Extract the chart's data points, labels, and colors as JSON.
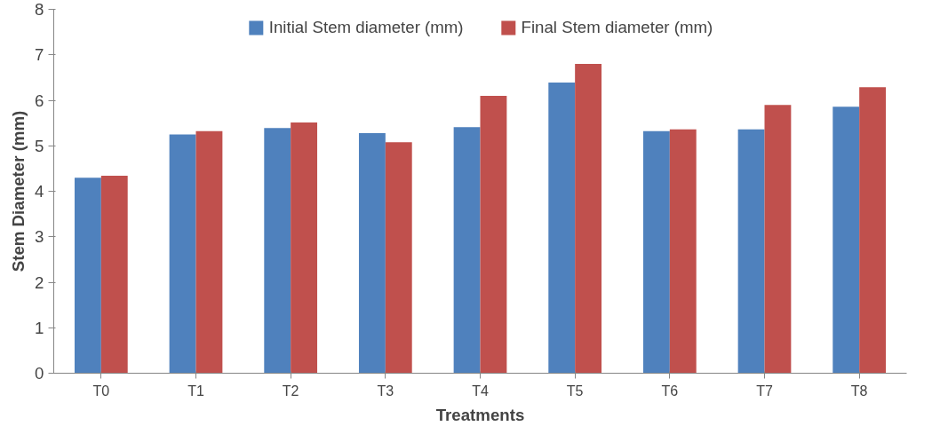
{
  "chart_data": {
    "type": "bar",
    "categories": [
      "T0",
      "T1",
      "T2",
      "T3",
      "T4",
      "T5",
      "T6",
      "T7",
      "T8"
    ],
    "series": [
      {
        "name": "Initial Stem diameter (mm)",
        "color": "#4f81bd",
        "values": [
          4.3,
          5.25,
          5.39,
          5.28,
          5.41,
          6.39,
          5.32,
          5.36,
          5.86
        ]
      },
      {
        "name": "Final Stem diameter (mm)",
        "color": "#c0504d",
        "values": [
          4.34,
          5.32,
          5.51,
          5.08,
          6.1,
          6.8,
          5.36,
          5.9,
          6.29
        ]
      }
    ],
    "xlabel": "Treatments",
    "ylabel": "Stem Diameter (mm)",
    "ylim": [
      0,
      8
    ],
    "yticks": [
      0,
      1,
      2,
      3,
      4,
      5,
      6,
      7,
      8
    ],
    "grid": false,
    "legend": "top"
  }
}
